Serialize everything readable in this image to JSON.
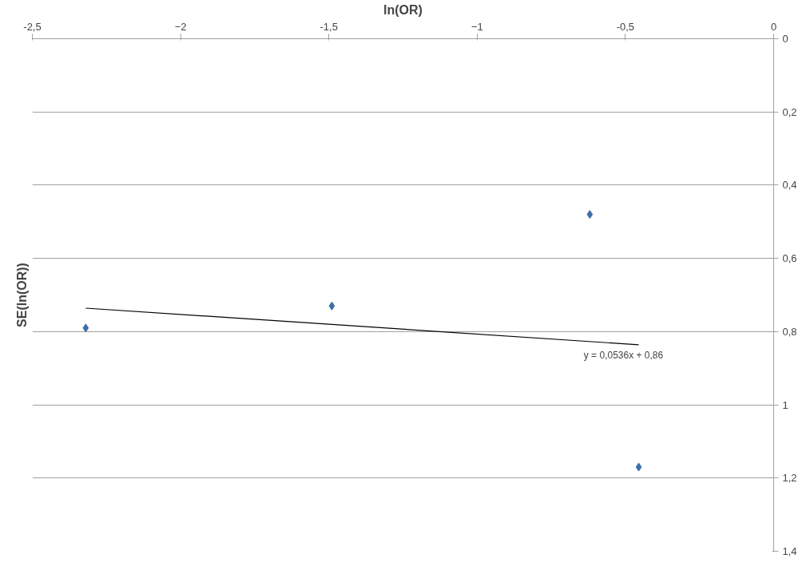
{
  "chart_data": {
    "type": "scatter",
    "xlabel": "ln(OR)",
    "ylabel": "SE(ln(OR))",
    "xlim": [
      -2.5,
      0
    ],
    "xticks": [
      {
        "value": -2.5,
        "label": "-2,5"
      },
      -2,
      {
        "value": -1.5,
        "label": "-1,5"
      },
      -1,
      {
        "value": -0.5,
        "label": "-0,5"
      },
      0
    ],
    "ylim": [
      1.4,
      0
    ],
    "yticks": [
      0,
      {
        "value": 0.2,
        "label": "0,2"
      },
      {
        "value": 0.4,
        "label": "0,4"
      },
      {
        "value": 0.6,
        "label": "0,6"
      },
      {
        "value": 0.8,
        "label": "0,8"
      },
      1,
      {
        "value": 1.2,
        "label": "1,2"
      },
      {
        "value": 1.4,
        "label": "1,4"
      }
    ],
    "grid": "y",
    "series": [
      {
        "marker": "diamond",
        "color": "#3e6fa8",
        "x": [
          -2.32,
          -1.49,
          -0.62,
          -0.455
        ],
        "values": [
          0.79,
          0.73,
          0.48,
          1.17
        ]
      },
      {
        "type": "line",
        "color": "#000000",
        "x": [
          -2.32,
          -0.455
        ],
        "values": [
          0.736,
          0.836
        ]
      }
    ],
    "annotations": [
      {
        "text": "y = 0,0536x + 0,86",
        "x": -0.6,
        "y": 0.836
      }
    ]
  }
}
